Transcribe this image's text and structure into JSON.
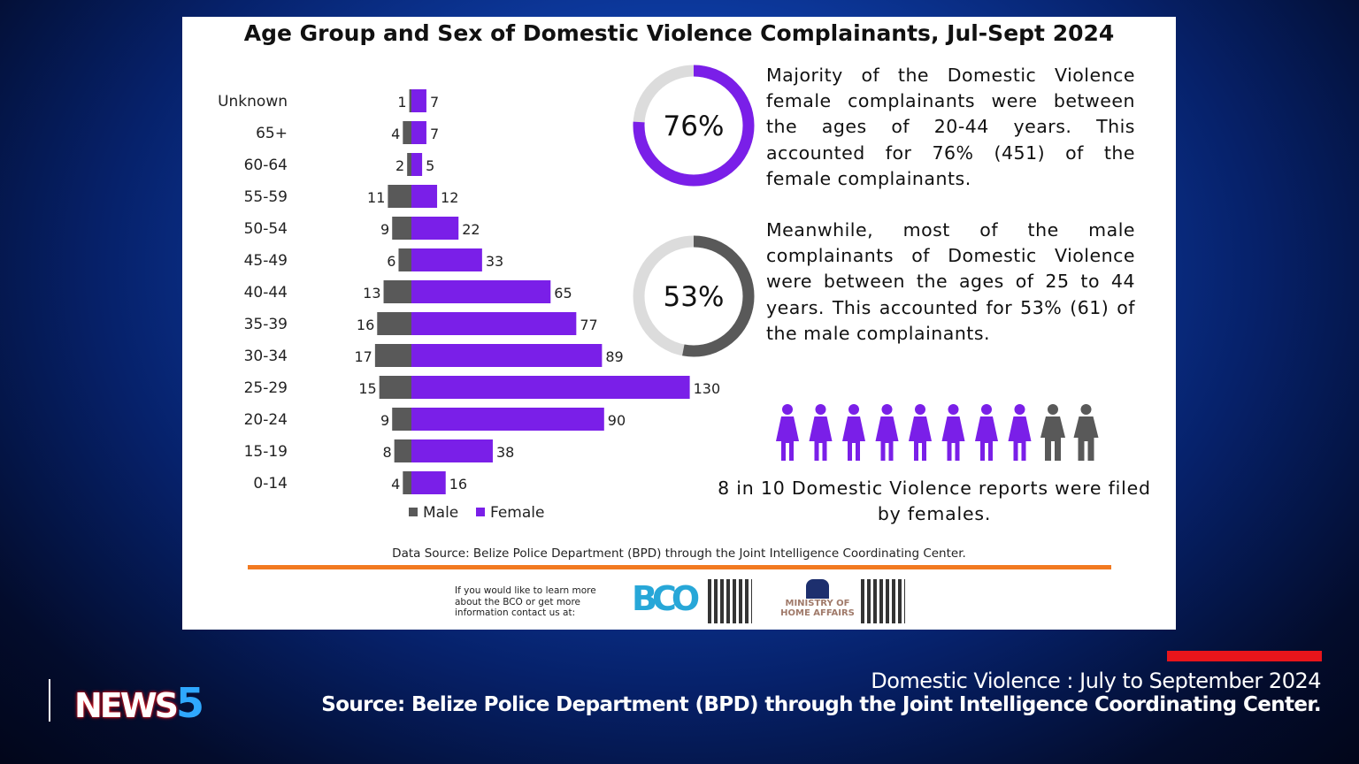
{
  "chart_data": {
    "type": "bar",
    "orientation": "horizontal-pyramid",
    "title": "Age Group and Sex of Domestic Violence Complainants, Jul-Sept 2024",
    "categories": [
      "Unknown",
      "65+",
      "60-64",
      "55-59",
      "50-54",
      "45-49",
      "40-44",
      "35-39",
      "30-34",
      "25-29",
      "20-24",
      "15-19",
      "0-14"
    ],
    "series": [
      {
        "name": "Male",
        "color": "#595959",
        "values": [
          1,
          4,
          2,
          11,
          9,
          6,
          13,
          16,
          17,
          15,
          9,
          8,
          4
        ]
      },
      {
        "name": "Female",
        "color": "#7a1fe8",
        "values": [
          7,
          7,
          5,
          12,
          22,
          33,
          65,
          77,
          89,
          130,
          90,
          38,
          16
        ]
      }
    ],
    "legend_position": "bottom",
    "grid": false
  },
  "donuts": [
    {
      "label": "76%",
      "value": 0.76,
      "color": "#7a1fe8"
    },
    {
      "label": "53%",
      "value": 0.53,
      "color": "#595959"
    }
  ],
  "paragraphs": [
    "Majority of the Domestic Violence female complainants were between the ages of 20-44 years. This accounted for 76% (451) of the female complainants.",
    "Meanwhile, most of the male complainants of Domestic Violence were between the ages of 25 to 44 years. This accounted for 53% (61) of the male complainants."
  ],
  "people": {
    "female_count": 8,
    "total": 10,
    "female_color": "#7a1fe8",
    "male_color": "#595959"
  },
  "note": "8 in 10 Domestic Violence reports were filed by females.",
  "data_source": "Data Source: Belize Police Department (BPD) through the Joint Intelligence Coordinating Center.",
  "contact": "If you would like to learn more about the BCO or get more information contact us at:",
  "bco_logo": "BCO",
  "ministry_logo": "MINISTRY OF HOME AFFAIRS",
  "ticker": {
    "headline": "Domestic Violence : July to September 2024",
    "source": "Source: Belize Police Department (BPD) through the Joint Intelligence Coordinating Center."
  },
  "channel_logo": {
    "text": "NEWS",
    "number": "5"
  }
}
